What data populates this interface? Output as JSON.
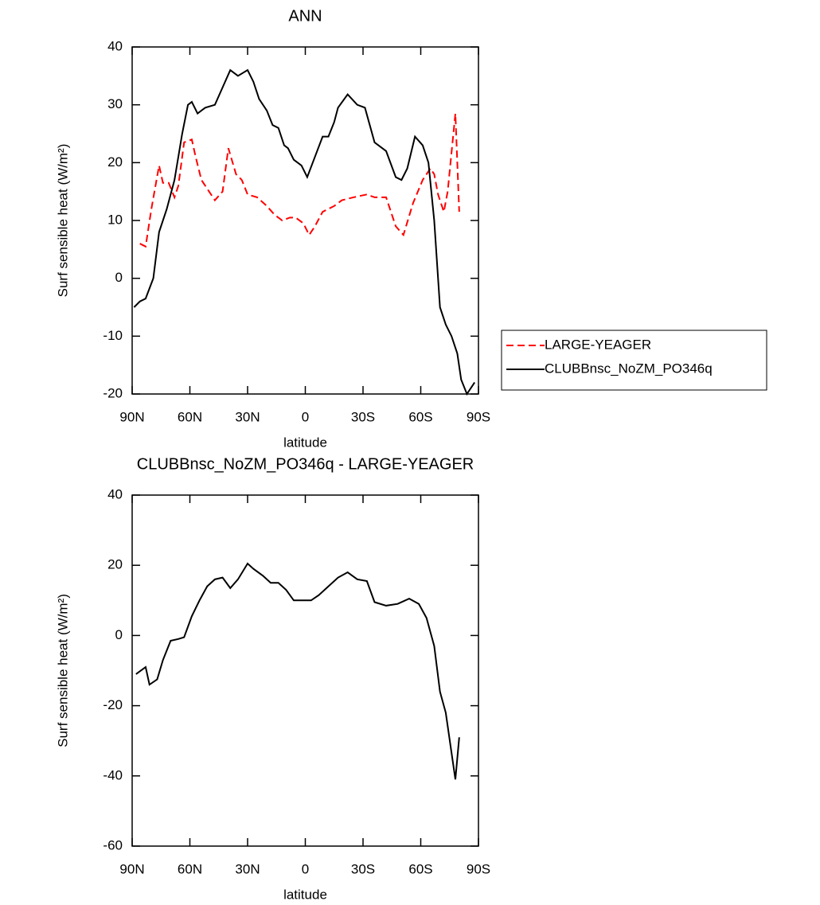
{
  "chart_data": [
    {
      "type": "line",
      "title": "ANN",
      "xlabel": "latitude",
      "ylabel": "Surf sensible heat (W/m²)",
      "xlim": [
        90,
        -90
      ],
      "xticks": [
        {
          "value": 90,
          "label": "90N"
        },
        {
          "value": 60,
          "label": "60N"
        },
        {
          "value": 30,
          "label": "30N"
        },
        0,
        {
          "value": -30,
          "label": "30S"
        },
        {
          "value": -60,
          "label": "60S"
        },
        {
          "value": -90,
          "label": "90S"
        }
      ],
      "ylim": [
        -20,
        40
      ],
      "yticks": [
        -20,
        -10,
        0,
        10,
        20,
        30,
        40
      ],
      "legend": "right",
      "series": [
        {
          "name": "LARGE-YEAGER",
          "color": "#ff0000",
          "dash": true,
          "x": [
            86,
            83,
            80,
            76,
            74,
            71,
            68,
            66,
            63,
            59,
            57,
            54,
            50,
            47,
            43,
            40,
            36,
            33,
            30,
            25,
            20,
            16,
            12,
            8,
            5,
            1,
            -2,
            -5,
            -9,
            -15,
            -19,
            -25,
            -32,
            -36,
            -42,
            -47,
            -51,
            -56,
            -61,
            -65,
            -67,
            -69,
            -72,
            -74,
            -78,
            -80
          ],
          "values": [
            6,
            5.5,
            12,
            19.5,
            16.5,
            16.5,
            14,
            16,
            23.5,
            24,
            21,
            17,
            15,
            13.5,
            15,
            22.5,
            18,
            17,
            14.5,
            14,
            12.5,
            11,
            10,
            10.5,
            10.5,
            9.5,
            7.5,
            9,
            11.5,
            12.5,
            13.5,
            14,
            14.5,
            14,
            14,
            9,
            7.5,
            13,
            17,
            19,
            18,
            14.5,
            11.5,
            15,
            28.5,
            11.5
          ]
        },
        {
          "name": "CLUBBnsc_NoZM_PO346q",
          "color": "#000000",
          "dash": false,
          "x": [
            89,
            86,
            83,
            79,
            76,
            72,
            68,
            64,
            61,
            59,
            56,
            52,
            47,
            43,
            39,
            35,
            30,
            27,
            24,
            20,
            17,
            14,
            11,
            9,
            6,
            2,
            -1,
            -5,
            -9,
            -12,
            -15,
            -17,
            -22,
            -27,
            -31,
            -36,
            -42,
            -47,
            -50,
            -53,
            -57,
            -61,
            -64,
            -67,
            -70,
            -73,
            -76,
            -79,
            -81,
            -84,
            -88
          ],
          "values": [
            -5,
            -4,
            -3.5,
            0,
            8,
            12,
            17,
            25,
            30,
            30.5,
            28.5,
            29.5,
            30,
            33,
            36,
            35,
            36,
            34,
            31,
            29,
            26.5,
            26,
            23,
            22.5,
            20.5,
            19.5,
            17.5,
            21,
            24.5,
            24.5,
            27,
            29.5,
            31.8,
            30,
            29.5,
            23.5,
            22,
            17.5,
            17,
            19,
            24.5,
            23,
            20,
            10,
            -5,
            -8,
            -10,
            -13,
            -17.5,
            -20,
            -18
          ]
        }
      ]
    },
    {
      "type": "line",
      "title": "CLUBBnsc_NoZM_PO346q - LARGE-YEAGER",
      "xlabel": "latitude",
      "ylabel": "Surf sensible heat (W/m²)",
      "xlim": [
        90,
        -90
      ],
      "xticks": [
        {
          "value": 90,
          "label": "90N"
        },
        {
          "value": 60,
          "label": "60N"
        },
        {
          "value": 30,
          "label": "30N"
        },
        0,
        {
          "value": -30,
          "label": "30S"
        },
        {
          "value": -60,
          "label": "60S"
        },
        {
          "value": -90,
          "label": "90S"
        }
      ],
      "ylim": [
        -60,
        40
      ],
      "yticks": [
        -60,
        -40,
        -20,
        0,
        20,
        40
      ],
      "series": [
        {
          "color": "#000000",
          "dash": false,
          "x": [
            88,
            83,
            81,
            77,
            74,
            70,
            66,
            63,
            59,
            55,
            51,
            47,
            43,
            39,
            35,
            30,
            27,
            22,
            18,
            14,
            10,
            6,
            1,
            -3,
            -7,
            -11,
            -17,
            -22,
            -27,
            -32,
            -36,
            -42,
            -48,
            -54,
            -59,
            -63,
            -67,
            -70,
            -73,
            -78,
            -80
          ],
          "values": [
            -11,
            -9,
            -14,
            -12.5,
            -7,
            -1.5,
            -1,
            -0.5,
            5.5,
            10,
            14,
            16,
            16.5,
            13.5,
            16,
            20.5,
            19,
            17,
            15,
            15,
            13,
            10,
            10,
            10,
            11.5,
            13.5,
            16.5,
            18,
            16,
            15.5,
            9.5,
            8.5,
            9,
            10.5,
            9,
            5,
            -3,
            -16,
            -22,
            -41,
            -29
          ]
        }
      ]
    }
  ]
}
